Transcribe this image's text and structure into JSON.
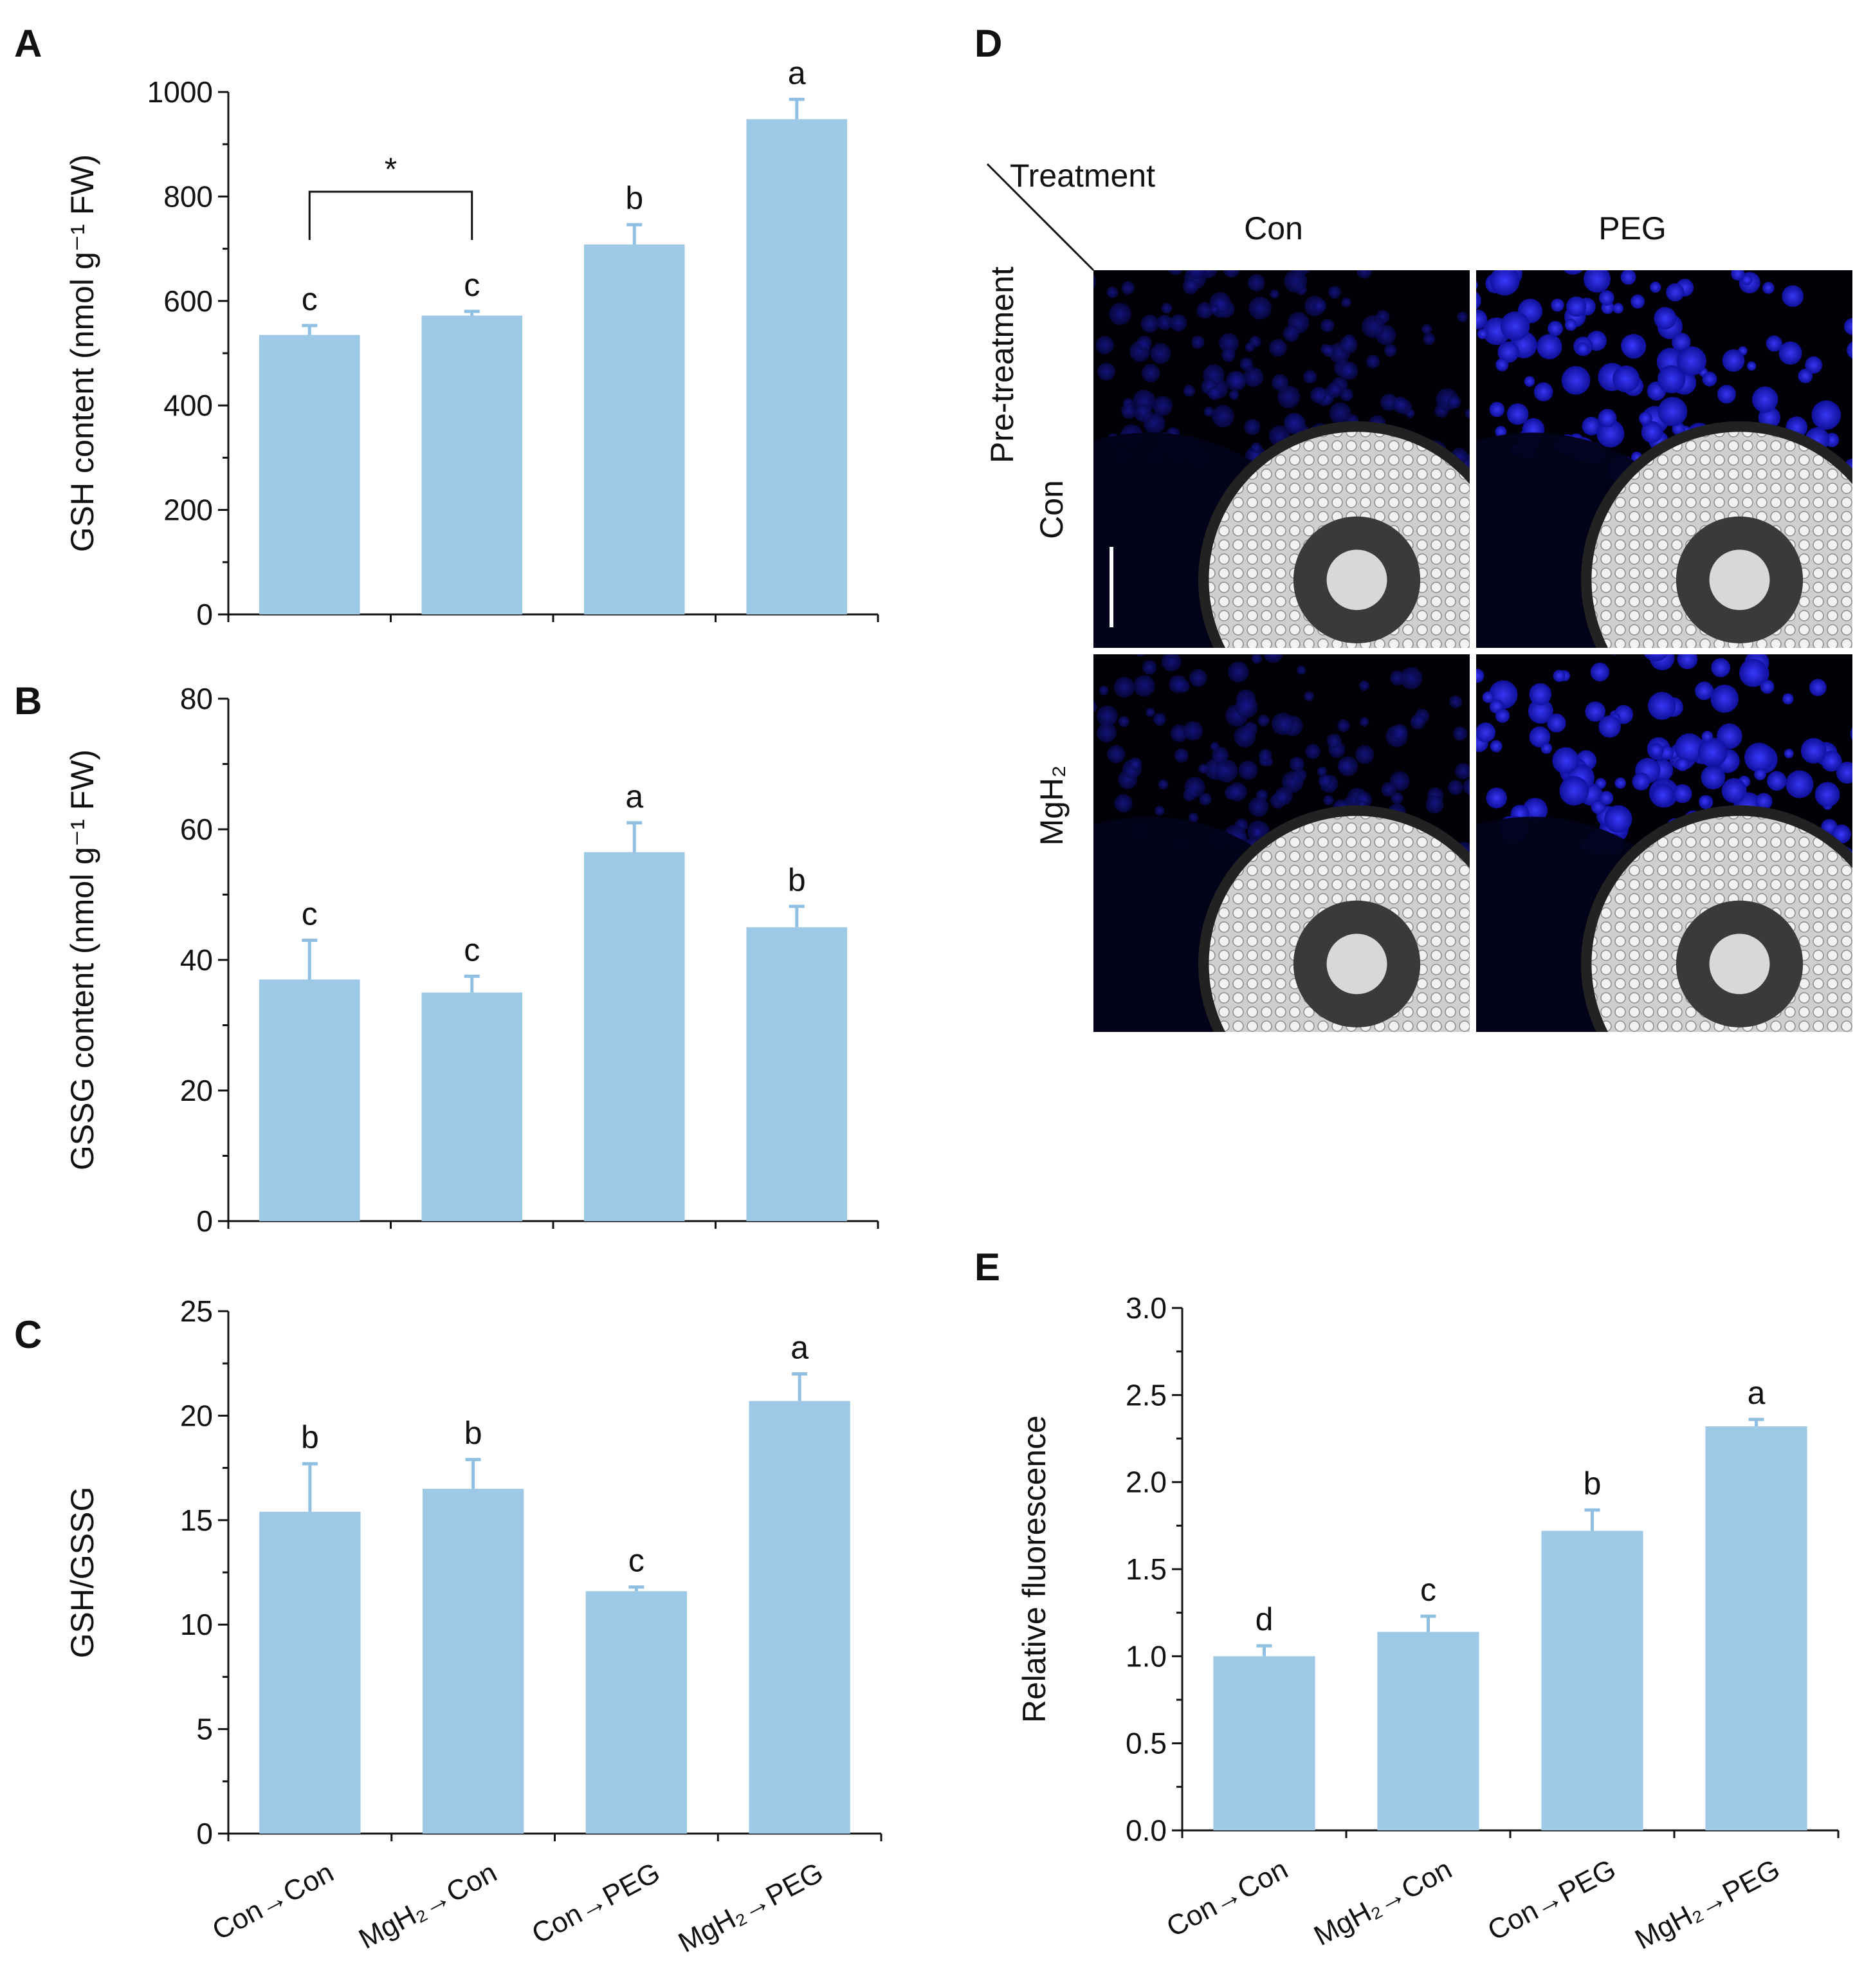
{
  "chart_data": [
    {
      "panel": "A",
      "type": "bar",
      "ylabel": "GSH content (nmol g⁻¹ FW)",
      "ylim": [
        0,
        1000
      ],
      "yticks": [
        "0",
        "200",
        "400",
        "600",
        "800",
        "1000"
      ],
      "categories": [
        "Con→Con",
        "MgH₂→Con",
        "Con→PEG",
        "MgH₂→PEG"
      ],
      "values": [
        535,
        572,
        708,
        948
      ],
      "errors": [
        18,
        8,
        38,
        38
      ],
      "letters": [
        "c",
        "c",
        "b",
        "a"
      ],
      "bracket": {
        "from": 0,
        "to": 1,
        "label": "*"
      },
      "show_xlabels": false
    },
    {
      "panel": "B",
      "type": "bar",
      "ylabel": "GSSG content (nmol g⁻¹ FW)",
      "ylim": [
        0,
        80
      ],
      "yticks": [
        "0",
        "20",
        "40",
        "60",
        "80"
      ],
      "categories": [
        "Con→Con",
        "MgH₂→Con",
        "Con→PEG",
        "MgH₂→PEG"
      ],
      "values": [
        37,
        35,
        56.5,
        45
      ],
      "errors": [
        6,
        2.5,
        4.5,
        3.2
      ],
      "letters": [
        "c",
        "c",
        "a",
        "b"
      ],
      "show_xlabels": false
    },
    {
      "panel": "C",
      "type": "bar",
      "ylabel": "GSH/GSSG",
      "ylim": [
        0,
        25
      ],
      "yticks": [
        "0",
        "5",
        "10",
        "15",
        "20",
        "25"
      ],
      "categories": [
        "Con→Con",
        "MgH₂→Con",
        "Con→PEG",
        "MgH₂→PEG"
      ],
      "values": [
        15.4,
        16.5,
        11.6,
        20.7
      ],
      "errors": [
        2.3,
        1.4,
        0.2,
        1.3
      ],
      "letters": [
        "b",
        "b",
        "c",
        "a"
      ],
      "show_xlabels": true
    },
    {
      "panel": "E",
      "type": "bar",
      "ylabel": "Relative fluorescence",
      "ylim": [
        0,
        3.0
      ],
      "yticks": [
        "0.0",
        "0.5",
        "1.0",
        "1.5",
        "2.0",
        "2.5",
        "3.0"
      ],
      "categories": [
        "Con→Con",
        "MgH₂→Con",
        "Con→PEG",
        "MgH₂→PEG"
      ],
      "values": [
        1.0,
        1.14,
        1.72,
        2.32
      ],
      "errors": [
        0.06,
        0.09,
        0.12,
        0.04
      ],
      "letters": [
        "d",
        "c",
        "b",
        "a"
      ],
      "show_xlabels": true
    }
  ],
  "panel_d": {
    "letter": "D",
    "corner_top": "Treatment",
    "corner_side": "Pre-treatment",
    "col_labels": [
      "Con",
      "PEG"
    ],
    "row_labels": [
      "Con",
      "MgH₂"
    ]
  },
  "colors": {
    "bar": "#9dc8e6",
    "error": "#8fc0e3",
    "axis": "#111111"
  }
}
